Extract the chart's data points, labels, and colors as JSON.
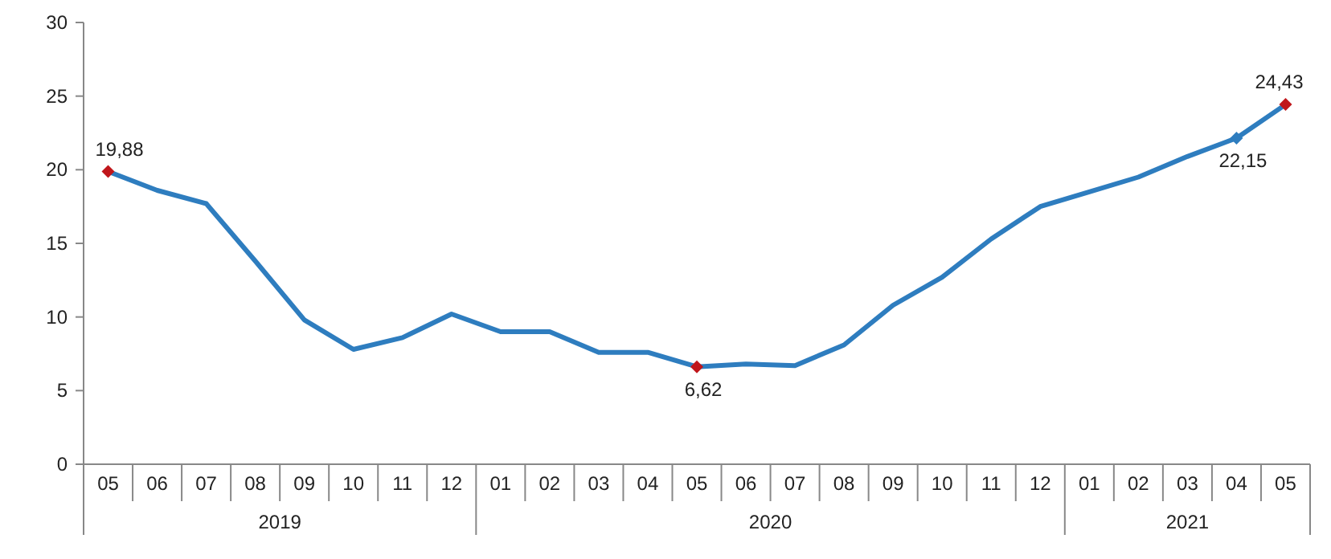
{
  "chart_data": {
    "type": "line",
    "categories": [
      "05",
      "06",
      "07",
      "08",
      "09",
      "10",
      "11",
      "12",
      "01",
      "02",
      "03",
      "04",
      "05",
      "06",
      "07",
      "08",
      "09",
      "10",
      "11",
      "12",
      "01",
      "02",
      "03",
      "04",
      "05"
    ],
    "series": [
      {
        "color": "#2e7dbf",
        "values": [
          19.88,
          18.6,
          17.7,
          13.8,
          9.8,
          7.8,
          8.6,
          10.2,
          9.0,
          9.0,
          7.6,
          7.6,
          6.62,
          6.8,
          6.7,
          8.1,
          10.8,
          12.7,
          15.3,
          17.5,
          18.5,
          19.5,
          20.9,
          22.15,
          24.43
        ]
      },
      {
        "type": "scatter",
        "marker": "diamond",
        "color": "#c0161b",
        "values": [
          19.88,
          null,
          null,
          null,
          null,
          null,
          null,
          null,
          null,
          null,
          null,
          null,
          6.62,
          null,
          null,
          null,
          null,
          null,
          null,
          null,
          null,
          null,
          null,
          22.15,
          24.43
        ],
        "colors": [
          null,
          null,
          null,
          null,
          null,
          null,
          null,
          null,
          null,
          null,
          null,
          null,
          null,
          null,
          null,
          null,
          null,
          null,
          null,
          null,
          null,
          null,
          null,
          "#2e7dbf",
          null
        ],
        "value_labels": [
          "19,88",
          null,
          null,
          null,
          null,
          null,
          null,
          null,
          null,
          null,
          null,
          null,
          "6,62",
          null,
          null,
          null,
          null,
          null,
          null,
          null,
          null,
          null,
          null,
          "22,15",
          "24,43"
        ]
      }
    ],
    "annotations": [
      "2019",
      "2020",
      "2021"
    ],
    "ylim": [
      0,
      30
    ],
    "yticks": [
      0,
      5,
      10,
      15,
      20,
      25,
      30
    ],
    "line_style": "solid"
  }
}
